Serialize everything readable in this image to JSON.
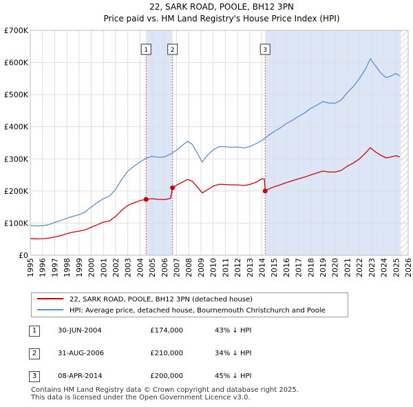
{
  "chart_data": {
    "type": "line",
    "title": "22, SARK ROAD, POOLE, BH12 3PN",
    "subtitle": "Price paid vs. HM Land Registry's House Price Index (HPI)",
    "xlim": [
      1995,
      2026
    ],
    "ylim": [
      0,
      700000
    ],
    "x_ticks": [
      1995,
      1996,
      1997,
      1998,
      1999,
      2000,
      2001,
      2002,
      2003,
      2004,
      2005,
      2006,
      2007,
      2008,
      2009,
      2010,
      2011,
      2012,
      2013,
      2014,
      2015,
      2016,
      2017,
      2018,
      2019,
      2020,
      2021,
      2022,
      2023,
      2024,
      2025,
      2026
    ],
    "y_ticks": [
      {
        "value": 0,
        "label": "£0"
      },
      {
        "value": 100000,
        "label": "£100K"
      },
      {
        "value": 200000,
        "label": "£200K"
      },
      {
        "value": 300000,
        "label": "£300K"
      },
      {
        "value": 400000,
        "label": "£400K"
      },
      {
        "value": 500000,
        "label": "£500K"
      },
      {
        "value": 600000,
        "label": "£600K"
      },
      {
        "value": 700000,
        "label": "£700K"
      }
    ],
    "grid": true,
    "shaded_periods": [
      [
        2004.5,
        2006.67
      ],
      [
        2014.27,
        2025.4
      ]
    ],
    "future_hatch_from": 2025.4,
    "colors": {
      "property": "#cc0000",
      "hpi": "#5b8fcf",
      "shade": "#dce6f7",
      "marker_line": "#e05050"
    },
    "series": [
      {
        "name": "22, SARK ROAD, POOLE, BH12 3PN (detached house)",
        "color": "#cc0000",
        "points": [
          [
            1995.0,
            52000
          ],
          [
            1995.5,
            51000
          ],
          [
            1996.0,
            51500
          ],
          [
            1996.5,
            53000
          ],
          [
            1997.0,
            57000
          ],
          [
            1997.5,
            61000
          ],
          [
            1998.0,
            67000
          ],
          [
            1998.5,
            72000
          ],
          [
            1999.0,
            75000
          ],
          [
            1999.5,
            79000
          ],
          [
            2000.0,
            87000
          ],
          [
            2000.5,
            95000
          ],
          [
            2001.0,
            103000
          ],
          [
            2001.5,
            107000
          ],
          [
            2002.0,
            121000
          ],
          [
            2002.5,
            140000
          ],
          [
            2003.0,
            155000
          ],
          [
            2003.5,
            163000
          ],
          [
            2004.0,
            170000
          ],
          [
            2004.5,
            174000
          ],
          [
            2005.0,
            176000
          ],
          [
            2005.5,
            174000
          ],
          [
            2006.0,
            173000
          ],
          [
            2006.5,
            177000
          ],
          [
            2006.67,
            210000
          ],
          [
            2007.0,
            218000
          ],
          [
            2007.5,
            228000
          ],
          [
            2007.9,
            236000
          ],
          [
            2008.3,
            230000
          ],
          [
            2008.7,
            213000
          ],
          [
            2009.1,
            194000
          ],
          [
            2009.5,
            203000
          ],
          [
            2010.0,
            215000
          ],
          [
            2010.5,
            221000
          ],
          [
            2011.0,
            220000
          ],
          [
            2011.5,
            219000
          ],
          [
            2012.0,
            219000
          ],
          [
            2012.5,
            217000
          ],
          [
            2013.0,
            220000
          ],
          [
            2013.5,
            227000
          ],
          [
            2014.0,
            238000
          ],
          [
            2014.2,
            237000
          ],
          [
            2014.27,
            200000
          ],
          [
            2014.5,
            205000
          ],
          [
            2015.0,
            213000
          ],
          [
            2015.5,
            219000
          ],
          [
            2016.0,
            226000
          ],
          [
            2016.5,
            232000
          ],
          [
            2017.0,
            238000
          ],
          [
            2017.5,
            243000
          ],
          [
            2018.0,
            250000
          ],
          [
            2018.5,
            256000
          ],
          [
            2019.0,
            262000
          ],
          [
            2019.5,
            259000
          ],
          [
            2020.0,
            259000
          ],
          [
            2020.5,
            264000
          ],
          [
            2021.0,
            277000
          ],
          [
            2021.5,
            287000
          ],
          [
            2022.0,
            300000
          ],
          [
            2022.5,
            318000
          ],
          [
            2022.9,
            335000
          ],
          [
            2023.3,
            322000
          ],
          [
            2023.8,
            310000
          ],
          [
            2024.2,
            303000
          ],
          [
            2024.6,
            306000
          ],
          [
            2025.0,
            310000
          ],
          [
            2025.3,
            306000
          ]
        ]
      },
      {
        "name": "HPI: Average price, detached house, Bournemouth Christchurch and Poole",
        "color": "#5b8fcf",
        "points": [
          [
            1995.0,
            93000
          ],
          [
            1995.5,
            91000
          ],
          [
            1996.0,
            92000
          ],
          [
            1996.5,
            95000
          ],
          [
            1997.0,
            102000
          ],
          [
            1997.5,
            108000
          ],
          [
            1998.0,
            115000
          ],
          [
            1998.5,
            121000
          ],
          [
            1999.0,
            126000
          ],
          [
            1999.5,
            135000
          ],
          [
            2000.0,
            150000
          ],
          [
            2000.5,
            164000
          ],
          [
            2001.0,
            176000
          ],
          [
            2001.5,
            184000
          ],
          [
            2002.0,
            205000
          ],
          [
            2002.5,
            236000
          ],
          [
            2003.0,
            262000
          ],
          [
            2003.5,
            277000
          ],
          [
            2004.0,
            290000
          ],
          [
            2004.5,
            302000
          ],
          [
            2005.0,
            308000
          ],
          [
            2005.5,
            305000
          ],
          [
            2006.0,
            306000
          ],
          [
            2006.5,
            315000
          ],
          [
            2007.0,
            327000
          ],
          [
            2007.5,
            343000
          ],
          [
            2007.9,
            355000
          ],
          [
            2008.3,
            345000
          ],
          [
            2008.7,
            318000
          ],
          [
            2009.1,
            290000
          ],
          [
            2009.5,
            310000
          ],
          [
            2010.0,
            328000
          ],
          [
            2010.5,
            338000
          ],
          [
            2011.0,
            338000
          ],
          [
            2011.5,
            336000
          ],
          [
            2012.0,
            337000
          ],
          [
            2012.5,
            334000
          ],
          [
            2013.0,
            338000
          ],
          [
            2013.5,
            347000
          ],
          [
            2014.0,
            357000
          ],
          [
            2014.5,
            372000
          ],
          [
            2015.0,
            385000
          ],
          [
            2015.5,
            396000
          ],
          [
            2016.0,
            410000
          ],
          [
            2016.5,
            420000
          ],
          [
            2017.0,
            432000
          ],
          [
            2017.5,
            443000
          ],
          [
            2018.0,
            457000
          ],
          [
            2018.5,
            467000
          ],
          [
            2019.0,
            478000
          ],
          [
            2019.5,
            474000
          ],
          [
            2020.0,
            473000
          ],
          [
            2020.5,
            483000
          ],
          [
            2021.0,
            506000
          ],
          [
            2021.5,
            525000
          ],
          [
            2022.0,
            550000
          ],
          [
            2022.5,
            580000
          ],
          [
            2022.9,
            612000
          ],
          [
            2023.3,
            590000
          ],
          [
            2023.8,
            565000
          ],
          [
            2024.2,
            553000
          ],
          [
            2024.6,
            558000
          ],
          [
            2025.0,
            566000
          ],
          [
            2025.3,
            558000
          ]
        ]
      }
    ],
    "sales": [
      {
        "num": "1",
        "x": 2004.5,
        "price": 174000
      },
      {
        "num": "2",
        "x": 2006.67,
        "price": 210000
      },
      {
        "num": "3",
        "x": 2014.27,
        "price": 200000
      }
    ]
  },
  "legend": {
    "property_label": "22, SARK ROAD, POOLE, BH12 3PN (detached house)",
    "hpi_label": "HPI: Average price, detached house, Bournemouth Christchurch and Poole"
  },
  "transactions": [
    {
      "num": "1",
      "date": "30-JUN-2004",
      "price": "£174,000",
      "hpi": "43% ↓ HPI"
    },
    {
      "num": "2",
      "date": "31-AUG-2006",
      "price": "£210,000",
      "hpi": "34% ↓ HPI"
    },
    {
      "num": "3",
      "date": "08-APR-2014",
      "price": "£200,000",
      "hpi": "45% ↓ HPI"
    }
  ],
  "footer": {
    "line1": "Contains HM Land Registry data © Crown copyright and database right 2025.",
    "line2": "This data is licensed under the Open Government Licence v3.0."
  }
}
